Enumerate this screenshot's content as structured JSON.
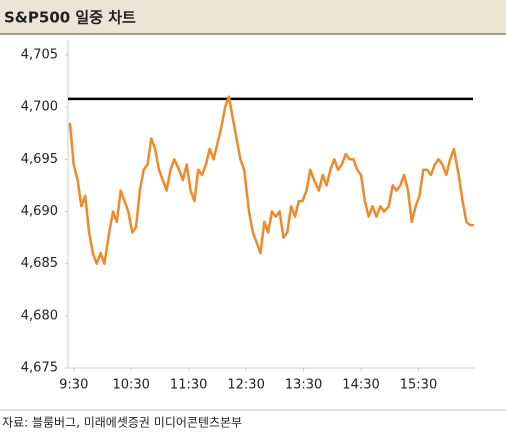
{
  "chart_data": {
    "type": "line",
    "title": "S&P500 일중 차트",
    "source": "자료: 블룸버그, 미래에셋증권 미디어콘텐츠본부",
    "x": [
      566,
      570,
      574,
      578,
      582,
      586,
      590,
      594,
      598,
      602,
      607,
      611,
      615,
      619,
      623,
      627,
      631,
      635,
      639,
      643,
      647,
      651,
      655,
      659,
      663,
      667,
      671,
      675,
      680,
      684,
      688,
      692,
      696,
      700,
      704,
      708,
      712,
      716,
      720,
      724,
      728,
      732,
      736,
      740,
      744,
      748,
      753,
      757,
      761,
      765,
      769,
      773,
      777,
      781,
      785,
      789,
      793,
      797,
      801,
      805,
      809,
      813,
      817,
      821,
      826,
      830,
      834,
      838,
      842,
      846,
      850,
      854,
      858,
      862,
      866,
      870,
      874,
      878,
      882,
      886,
      890,
      894,
      899,
      903,
      907,
      911,
      915,
      919,
      923,
      927,
      931,
      935,
      939,
      943,
      947,
      951,
      955,
      959,
      963,
      967,
      972,
      976,
      980,
      984,
      988
    ],
    "series": [
      {
        "name": "S&P500",
        "color": "#f0892a",
        "values": [
          4698.5,
          4694.5,
          4693,
          4690.5,
          4691.5,
          4688,
          4686,
          4685,
          4686,
          4685,
          4688,
          4690,
          4689,
          4692,
          4691,
          4690,
          4688,
          4688.5,
          4692,
          4694,
          4694.5,
          4697,
          4696,
          4694,
          4693,
          4692,
          4694,
          4695,
          4694,
          4693,
          4694.5,
          4692,
          4691,
          4694,
          4693.5,
          4694.5,
          4696,
          4695,
          4696.5,
          4698,
          4700,
          4701,
          4699,
          4697,
          4695,
          4694,
          4690,
          4688,
          4687,
          4686,
          4689,
          4688,
          4690,
          4689.5,
          4690,
          4687.5,
          4688,
          4690.5,
          4689.5,
          4691,
          4691,
          4692,
          4694,
          4693,
          4692,
          4693.5,
          4692.5,
          4694,
          4695,
          4694,
          4694.5,
          4695.5,
          4695,
          4695,
          4694,
          4693.5,
          4691,
          4689.5,
          4690.5,
          4689.5,
          4690.5,
          4690,
          4690.5,
          4692.5,
          4692,
          4692.5,
          4693.5,
          4692,
          4689,
          4690.5,
          4691.5,
          4694,
          4694,
          4693.5,
          4694.5,
          4695,
          4694.5,
          4693.5,
          4695,
          4696,
          4693.5,
          4691,
          4689,
          4688.7,
          4688.7
        ]
      }
    ],
    "hline": {
      "value": 4700.8,
      "color": "#000000"
    },
    "xlim": [
      564,
      989
    ],
    "xticks": [
      {
        "value": 570,
        "label": "9:30"
      },
      {
        "value": 630,
        "label": "10:30"
      },
      {
        "value": 690,
        "label": "11:30"
      },
      {
        "value": 750,
        "label": "12:30"
      },
      {
        "value": 810,
        "label": "13:30"
      },
      {
        "value": 870,
        "label": "14:30"
      },
      {
        "value": 930,
        "label": "15:30"
      }
    ],
    "ylim": [
      4675,
      4705
    ],
    "yticks": [
      {
        "value": 4675,
        "label": "4,675"
      },
      {
        "value": 4680,
        "label": "4,680"
      },
      {
        "value": 4685,
        "label": "4,685"
      },
      {
        "value": 4690,
        "label": "4,690"
      },
      {
        "value": 4695,
        "label": "4,695"
      },
      {
        "value": 4700,
        "label": "4,700"
      },
      {
        "value": 4705,
        "label": "4,705"
      }
    ]
  }
}
